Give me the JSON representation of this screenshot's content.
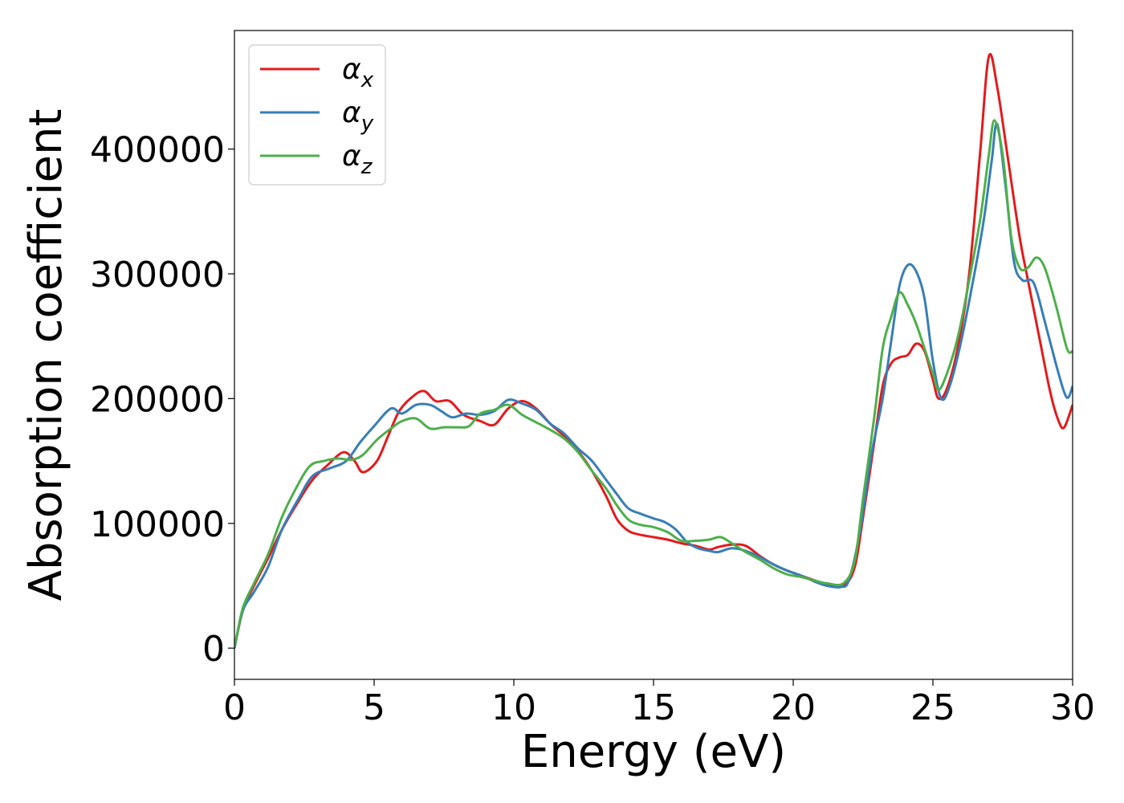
{
  "chart_data": {
    "type": "line",
    "title": "",
    "xlabel": "Energy (eV)",
    "ylabel": "Absorption coefficient",
    "xlim": [
      0,
      30
    ],
    "ylim": [
      -25000,
      495000
    ],
    "xticks": [
      0,
      5,
      10,
      15,
      20,
      25,
      30
    ],
    "yticks": [
      0,
      100000,
      200000,
      300000,
      400000
    ],
    "grid": false,
    "legend_position": "top-left",
    "series": [
      {
        "name": "α",
        "subscript": "x",
        "color": "#e41a1c",
        "points": [
          [
            0,
            0
          ],
          [
            0.3,
            30000
          ],
          [
            0.7,
            50000
          ],
          [
            1.2,
            72000
          ],
          [
            1.7,
            95000
          ],
          [
            2.3,
            118000
          ],
          [
            2.8,
            135000
          ],
          [
            3.3,
            146000
          ],
          [
            3.9,
            157000
          ],
          [
            4.3,
            150000
          ],
          [
            4.6,
            141000
          ],
          [
            5.1,
            150000
          ],
          [
            5.5,
            170000
          ],
          [
            5.9,
            190000
          ],
          [
            6.4,
            202000
          ],
          [
            6.8,
            206000
          ],
          [
            7.2,
            198000
          ],
          [
            7.7,
            198000
          ],
          [
            8.2,
            187000
          ],
          [
            8.8,
            182000
          ],
          [
            9.3,
            179000
          ],
          [
            9.8,
            192000
          ],
          [
            10.3,
            198000
          ],
          [
            10.8,
            192000
          ],
          [
            11.3,
            180000
          ],
          [
            11.8,
            170000
          ],
          [
            12.3,
            158000
          ],
          [
            12.8,
            142000
          ],
          [
            13.3,
            122000
          ],
          [
            13.7,
            103000
          ],
          [
            14.1,
            94000
          ],
          [
            14.5,
            91000
          ],
          [
            15.0,
            89000
          ],
          [
            15.5,
            87000
          ],
          [
            16.0,
            84000
          ],
          [
            16.5,
            82000
          ],
          [
            17.0,
            79000
          ],
          [
            17.3,
            81000
          ],
          [
            17.8,
            83000
          ],
          [
            18.3,
            82000
          ],
          [
            18.8,
            74000
          ],
          [
            19.3,
            67000
          ],
          [
            19.8,
            62000
          ],
          [
            20.3,
            58000
          ],
          [
            20.8,
            54000
          ],
          [
            21.2,
            51000
          ],
          [
            21.8,
            50000
          ],
          [
            22.2,
            65000
          ],
          [
            22.5,
            105000
          ],
          [
            22.9,
            165000
          ],
          [
            23.2,
            210000
          ],
          [
            23.5,
            228000
          ],
          [
            23.8,
            233000
          ],
          [
            24.1,
            235000
          ],
          [
            24.4,
            244000
          ],
          [
            24.7,
            238000
          ],
          [
            25.0,
            215000
          ],
          [
            25.2,
            200000
          ],
          [
            25.5,
            208000
          ],
          [
            25.9,
            242000
          ],
          [
            26.3,
            300000
          ],
          [
            26.7,
            400000
          ],
          [
            27.0,
            474000
          ],
          [
            27.3,
            450000
          ],
          [
            27.7,
            390000
          ],
          [
            28.1,
            330000
          ],
          [
            28.4,
            295000
          ],
          [
            28.8,
            250000
          ],
          [
            29.2,
            205000
          ],
          [
            29.5,
            182000
          ],
          [
            29.7,
            177000
          ],
          [
            30.0,
            195000
          ]
        ]
      },
      {
        "name": "α",
        "subscript": "y",
        "color": "#377eb8",
        "points": [
          [
            0,
            0
          ],
          [
            0.3,
            30000
          ],
          [
            0.7,
            45000
          ],
          [
            1.2,
            65000
          ],
          [
            1.7,
            95000
          ],
          [
            2.3,
            120000
          ],
          [
            2.8,
            138000
          ],
          [
            3.4,
            144000
          ],
          [
            4.0,
            150000
          ],
          [
            4.5,
            165000
          ],
          [
            5.0,
            178000
          ],
          [
            5.6,
            192000
          ],
          [
            6.0,
            188000
          ],
          [
            6.5,
            195000
          ],
          [
            7.0,
            195000
          ],
          [
            7.4,
            190000
          ],
          [
            7.8,
            185000
          ],
          [
            8.3,
            188000
          ],
          [
            8.8,
            187000
          ],
          [
            9.3,
            190000
          ],
          [
            9.8,
            199000
          ],
          [
            10.3,
            196000
          ],
          [
            10.8,
            191000
          ],
          [
            11.3,
            180000
          ],
          [
            11.8,
            172000
          ],
          [
            12.3,
            160000
          ],
          [
            12.8,
            150000
          ],
          [
            13.3,
            135000
          ],
          [
            13.7,
            123000
          ],
          [
            14.1,
            112000
          ],
          [
            14.5,
            108000
          ],
          [
            15.0,
            104000
          ],
          [
            15.4,
            101000
          ],
          [
            15.8,
            95000
          ],
          [
            16.2,
            85000
          ],
          [
            16.6,
            80000
          ],
          [
            17.0,
            78000
          ],
          [
            17.3,
            77000
          ],
          [
            17.8,
            80000
          ],
          [
            18.3,
            78000
          ],
          [
            18.8,
            73000
          ],
          [
            19.3,
            67000
          ],
          [
            19.8,
            62000
          ],
          [
            20.3,
            58000
          ],
          [
            20.8,
            53000
          ],
          [
            21.2,
            50000
          ],
          [
            21.7,
            49000
          ],
          [
            22.0,
            55000
          ],
          [
            22.4,
            95000
          ],
          [
            22.8,
            155000
          ],
          [
            23.2,
            200000
          ],
          [
            23.5,
            245000
          ],
          [
            23.8,
            290000
          ],
          [
            24.1,
            307000
          ],
          [
            24.4,
            302000
          ],
          [
            24.7,
            280000
          ],
          [
            25.0,
            230000
          ],
          [
            25.3,
            200000
          ],
          [
            25.6,
            210000
          ],
          [
            26.0,
            245000
          ],
          [
            26.4,
            290000
          ],
          [
            26.8,
            340000
          ],
          [
            27.1,
            390000
          ],
          [
            27.3,
            420000
          ],
          [
            27.6,
            370000
          ],
          [
            27.9,
            310000
          ],
          [
            28.2,
            295000
          ],
          [
            28.6,
            293000
          ],
          [
            29.0,
            262000
          ],
          [
            29.4,
            228000
          ],
          [
            29.7,
            205000
          ],
          [
            29.85,
            201000
          ],
          [
            30.0,
            210000
          ]
        ]
      },
      {
        "name": "α",
        "subscript": "z",
        "color": "#4daf4a",
        "points": [
          [
            0,
            0
          ],
          [
            0.3,
            32000
          ],
          [
            0.7,
            52000
          ],
          [
            1.2,
            75000
          ],
          [
            1.7,
            105000
          ],
          [
            2.2,
            128000
          ],
          [
            2.7,
            146000
          ],
          [
            3.2,
            150000
          ],
          [
            3.7,
            152000
          ],
          [
            4.2,
            151000
          ],
          [
            4.6,
            155000
          ],
          [
            5.1,
            167000
          ],
          [
            5.6,
            176000
          ],
          [
            6.0,
            182000
          ],
          [
            6.5,
            184000
          ],
          [
            7.0,
            176000
          ],
          [
            7.5,
            177000
          ],
          [
            8.0,
            177000
          ],
          [
            8.4,
            178000
          ],
          [
            8.8,
            188000
          ],
          [
            9.3,
            191000
          ],
          [
            9.8,
            195000
          ],
          [
            10.3,
            187000
          ],
          [
            10.8,
            181000
          ],
          [
            11.3,
            175000
          ],
          [
            11.8,
            168000
          ],
          [
            12.3,
            157000
          ],
          [
            12.8,
            142000
          ],
          [
            13.3,
            128000
          ],
          [
            13.7,
            114000
          ],
          [
            14.1,
            103000
          ],
          [
            14.5,
            99000
          ],
          [
            15.0,
            97000
          ],
          [
            15.5,
            93000
          ],
          [
            16.0,
            86000
          ],
          [
            16.5,
            86000
          ],
          [
            17.0,
            87000
          ],
          [
            17.4,
            89000
          ],
          [
            17.8,
            84000
          ],
          [
            18.3,
            77000
          ],
          [
            18.8,
            71000
          ],
          [
            19.3,
            64000
          ],
          [
            19.8,
            59000
          ],
          [
            20.3,
            57000
          ],
          [
            20.8,
            54000
          ],
          [
            21.2,
            52000
          ],
          [
            21.8,
            52000
          ],
          [
            22.2,
            70000
          ],
          [
            22.5,
            120000
          ],
          [
            22.9,
            185000
          ],
          [
            23.2,
            240000
          ],
          [
            23.5,
            265000
          ],
          [
            23.8,
            285000
          ],
          [
            24.1,
            275000
          ],
          [
            24.4,
            260000
          ],
          [
            24.7,
            240000
          ],
          [
            25.0,
            220000
          ],
          [
            25.2,
            207000
          ],
          [
            25.5,
            220000
          ],
          [
            25.9,
            250000
          ],
          [
            26.3,
            295000
          ],
          [
            26.7,
            345000
          ],
          [
            27.0,
            395000
          ],
          [
            27.2,
            423000
          ],
          [
            27.5,
            395000
          ],
          [
            27.8,
            330000
          ],
          [
            28.1,
            305000
          ],
          [
            28.4,
            305000
          ],
          [
            28.7,
            313000
          ],
          [
            29.0,
            305000
          ],
          [
            29.4,
            275000
          ],
          [
            29.8,
            240000
          ],
          [
            30.0,
            238000
          ]
        ]
      }
    ]
  }
}
